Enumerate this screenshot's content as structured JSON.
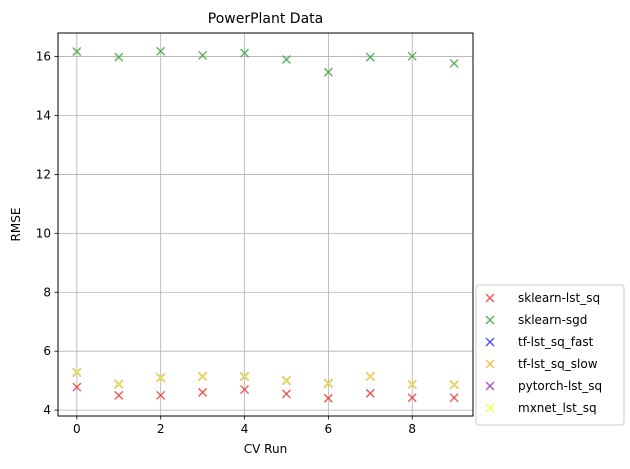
{
  "chart_data": {
    "type": "scatter",
    "title": "PowerPlant Data",
    "xlabel": "CV Run",
    "ylabel": "RMSE",
    "xlim": [
      -0.45,
      9.45
    ],
    "ylim": [
      3.8,
      16.8
    ],
    "xticks": [
      0,
      2,
      4,
      6,
      8
    ],
    "yticks": [
      4,
      6,
      8,
      10,
      12,
      14,
      16
    ],
    "grid": true,
    "legend_position": "lower-right, outside the axes",
    "marker": "x",
    "x": [
      0,
      1,
      2,
      3,
      4,
      5,
      6,
      7,
      8,
      9
    ],
    "series": [
      {
        "name": "sklearn-lst_sq",
        "color": "#e8473f",
        "values": [
          4.78,
          4.5,
          4.5,
          4.6,
          4.7,
          4.55,
          4.4,
          4.57,
          4.42,
          4.42
        ]
      },
      {
        "name": "sklearn-sgd",
        "color": "#4ba84b",
        "values": [
          16.17,
          15.98,
          16.18,
          16.04,
          16.12,
          15.9,
          15.47,
          15.98,
          16.01,
          15.77
        ]
      },
      {
        "name": "tf-lst_sq_fast",
        "color": "#3b3be0",
        "values": [
          5.28,
          4.88,
          5.1,
          5.14,
          5.14,
          5.0,
          4.91,
          5.14,
          4.87,
          4.86
        ]
      },
      {
        "name": "tf-lst_sq_slow",
        "color": "#f5b237",
        "values": [
          5.28,
          4.88,
          5.1,
          5.14,
          5.14,
          5.0,
          4.91,
          5.14,
          4.87,
          4.86
        ]
      },
      {
        "name": "pytorch-lst_sq",
        "color": "#9a45b5",
        "values": [
          5.28,
          4.88,
          5.1,
          5.14,
          5.14,
          5.0,
          4.91,
          5.14,
          4.87,
          4.86
        ]
      },
      {
        "name": "mxnet_lst_sq",
        "color": "#f8f83a",
        "values": [
          5.28,
          4.88,
          5.1,
          5.14,
          5.14,
          5.0,
          4.91,
          5.14,
          4.87,
          4.86
        ]
      }
    ]
  }
}
